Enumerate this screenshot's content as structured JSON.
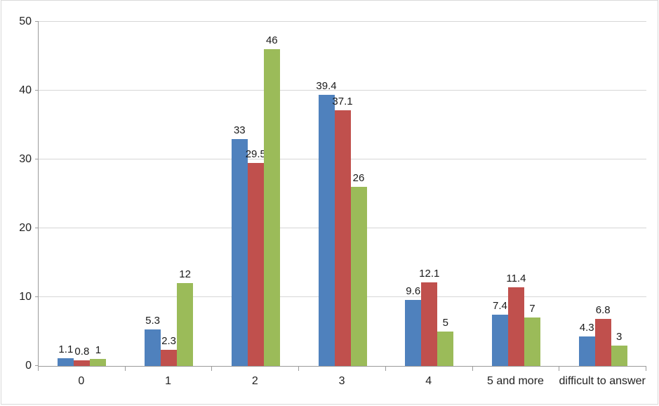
{
  "chart_data": {
    "type": "bar",
    "title": "",
    "xlabel": "",
    "ylabel": "",
    "categories": [
      "0",
      "1",
      "2",
      "3",
      "4",
      "5 and more",
      "difficult to answer"
    ],
    "series": [
      {
        "name": "series-blue",
        "color": "#4f81bd",
        "values": [
          1.1,
          5.3,
          33,
          39.4,
          9.6,
          7.4,
          4.3
        ]
      },
      {
        "name": "series-red",
        "color": "#c0504d",
        "values": [
          0.8,
          2.3,
          29.5,
          37.1,
          12.1,
          11.4,
          6.8
        ]
      },
      {
        "name": "series-green",
        "color": "#9bbb59",
        "values": [
          1,
          12,
          46,
          26,
          5,
          7,
          3
        ]
      }
    ],
    "ylim": [
      0,
      50
    ],
    "yticks": [
      0,
      10,
      20,
      30,
      40,
      50
    ],
    "grid": true,
    "legend_position": "none",
    "data_labels": true
  },
  "frame": {
    "background": "#ffffff",
    "border_color": "#d9d9d9",
    "gridline_color": "#d6d6d6",
    "axis_color": "#9b9b9b",
    "label_color": "#1a1a1a"
  }
}
